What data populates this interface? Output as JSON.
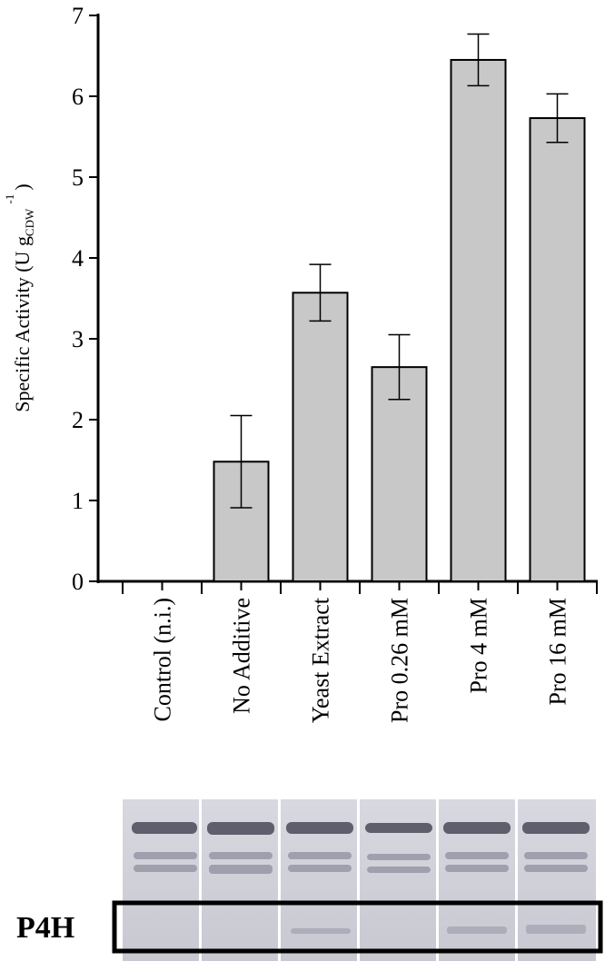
{
  "chart_data": {
    "type": "bar",
    "y_label_parts": [
      "Specific Activity (U g",
      "CDW",
      "-1",
      ")"
    ],
    "categories": [
      "Control (n.i.)",
      "No Additive",
      "Yeast Extract",
      "Pro 0.26 mM",
      "Pro 4 mM",
      "Pro 16 mM"
    ],
    "values": [
      0,
      1.48,
      3.57,
      2.65,
      6.45,
      5.73
    ],
    "errors": [
      null,
      0.57,
      0.35,
      0.4,
      0.32,
      0.3
    ],
    "color": "#c8c8c8",
    "ylim": [
      0,
      7
    ],
    "yticks": [
      0,
      1,
      2,
      3,
      4,
      5,
      6,
      7
    ],
    "gel_label": "P4H"
  }
}
